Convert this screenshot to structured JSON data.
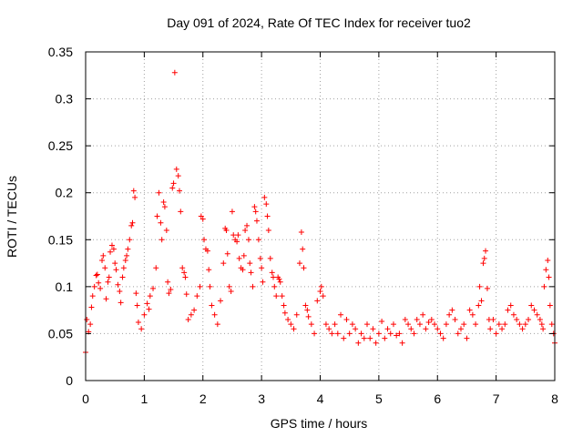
{
  "chart_data": {
    "type": "scatter",
    "title": "Day 091 of 2024, Rate Of TEC Index for receiver tuo2",
    "xlabel": "GPS time / hours",
    "ylabel": "ROTI / TECUs",
    "xlim": [
      0,
      8
    ],
    "ylim": [
      0,
      0.35
    ],
    "x_ticks": [
      "0",
      "1",
      "2",
      "3",
      "4",
      "5",
      "6",
      "7",
      "8"
    ],
    "y_ticks": [
      "0",
      "0.05",
      "0.1",
      "0.15",
      "0.2",
      "0.25",
      "0.3",
      "0.35"
    ],
    "grid": true,
    "marker": "+",
    "colors": {
      "points": "#ff0000",
      "axes": "#000000",
      "grid": "#a0a0a0"
    },
    "series": [
      {
        "name": "ROTI",
        "points": [
          [
            0.0,
            0.03
          ],
          [
            0.02,
            0.065
          ],
          [
            0.05,
            0.052
          ],
          [
            0.08,
            0.06
          ],
          [
            0.1,
            0.078
          ],
          [
            0.12,
            0.09
          ],
          [
            0.15,
            0.1
          ],
          [
            0.18,
            0.112
          ],
          [
            0.2,
            0.113
          ],
          [
            0.22,
            0.104
          ],
          [
            0.25,
            0.098
          ],
          [
            0.28,
            0.128
          ],
          [
            0.3,
            0.133
          ],
          [
            0.33,
            0.12
          ],
          [
            0.35,
            0.087
          ],
          [
            0.38,
            0.105
          ],
          [
            0.4,
            0.11
          ],
          [
            0.42,
            0.137
          ],
          [
            0.45,
            0.144
          ],
          [
            0.48,
            0.14
          ],
          [
            0.5,
            0.125
          ],
          [
            0.52,
            0.118
          ],
          [
            0.55,
            0.102
          ],
          [
            0.58,
            0.095
          ],
          [
            0.6,
            0.083
          ],
          [
            0.63,
            0.11
          ],
          [
            0.65,
            0.12
          ],
          [
            0.68,
            0.128
          ],
          [
            0.7,
            0.133
          ],
          [
            0.72,
            0.14
          ],
          [
            0.75,
            0.15
          ],
          [
            0.78,
            0.165
          ],
          [
            0.8,
            0.168
          ],
          [
            0.82,
            0.202
          ],
          [
            0.84,
            0.195
          ],
          [
            0.86,
            0.093
          ],
          [
            0.88,
            0.08
          ],
          [
            0.9,
            0.062
          ],
          [
            0.95,
            0.055
          ],
          [
            1.0,
            0.07
          ],
          [
            1.05,
            0.082
          ],
          [
            1.08,
            0.076
          ],
          [
            1.1,
            0.09
          ],
          [
            1.15,
            0.098
          ],
          [
            1.2,
            0.12
          ],
          [
            1.22,
            0.175
          ],
          [
            1.25,
            0.2
          ],
          [
            1.28,
            0.168
          ],
          [
            1.3,
            0.15
          ],
          [
            1.33,
            0.19
          ],
          [
            1.35,
            0.185
          ],
          [
            1.38,
            0.16
          ],
          [
            1.4,
            0.105
          ],
          [
            1.42,
            0.093
          ],
          [
            1.45,
            0.097
          ],
          [
            1.48,
            0.205
          ],
          [
            1.5,
            0.21
          ],
          [
            1.52,
            0.328
          ],
          [
            1.55,
            0.225
          ],
          [
            1.58,
            0.218
          ],
          [
            1.6,
            0.202
          ],
          [
            1.62,
            0.18
          ],
          [
            1.65,
            0.12
          ],
          [
            1.68,
            0.115
          ],
          [
            1.7,
            0.11
          ],
          [
            1.72,
            0.092
          ],
          [
            1.75,
            0.065
          ],
          [
            1.8,
            0.07
          ],
          [
            1.85,
            0.075
          ],
          [
            1.9,
            0.09
          ],
          [
            1.95,
            0.1
          ],
          [
            1.97,
            0.175
          ],
          [
            2.0,
            0.172
          ],
          [
            2.02,
            0.15
          ],
          [
            2.05,
            0.14
          ],
          [
            2.08,
            0.138
          ],
          [
            2.1,
            0.118
          ],
          [
            2.12,
            0.1
          ],
          [
            2.15,
            0.08
          ],
          [
            2.2,
            0.07
          ],
          [
            2.25,
            0.06
          ],
          [
            2.3,
            0.085
          ],
          [
            2.35,
            0.125
          ],
          [
            2.38,
            0.162
          ],
          [
            2.4,
            0.16
          ],
          [
            2.42,
            0.135
          ],
          [
            2.45,
            0.1
          ],
          [
            2.48,
            0.095
          ],
          [
            2.5,
            0.18
          ],
          [
            2.52,
            0.155
          ],
          [
            2.55,
            0.15
          ],
          [
            2.58,
            0.148
          ],
          [
            2.6,
            0.155
          ],
          [
            2.62,
            0.13
          ],
          [
            2.65,
            0.12
          ],
          [
            2.68,
            0.118
          ],
          [
            2.7,
            0.133
          ],
          [
            2.72,
            0.16
          ],
          [
            2.75,
            0.165
          ],
          [
            2.78,
            0.15
          ],
          [
            2.8,
            0.125
          ],
          [
            2.82,
            0.115
          ],
          [
            2.85,
            0.1
          ],
          [
            2.88,
            0.185
          ],
          [
            2.9,
            0.18
          ],
          [
            2.92,
            0.17
          ],
          [
            2.95,
            0.15
          ],
          [
            2.98,
            0.13
          ],
          [
            3.0,
            0.12
          ],
          [
            3.02,
            0.105
          ],
          [
            3.05,
            0.195
          ],
          [
            3.08,
            0.188
          ],
          [
            3.1,
            0.175
          ],
          [
            3.12,
            0.16
          ],
          [
            3.15,
            0.13
          ],
          [
            3.18,
            0.115
          ],
          [
            3.2,
            0.11
          ],
          [
            3.22,
            0.1
          ],
          [
            3.25,
            0.09
          ],
          [
            3.28,
            0.11
          ],
          [
            3.3,
            0.108
          ],
          [
            3.32,
            0.105
          ],
          [
            3.35,
            0.09
          ],
          [
            3.38,
            0.08
          ],
          [
            3.4,
            0.072
          ],
          [
            3.45,
            0.065
          ],
          [
            3.5,
            0.06
          ],
          [
            3.55,
            0.055
          ],
          [
            3.6,
            0.07
          ],
          [
            3.65,
            0.125
          ],
          [
            3.68,
            0.158
          ],
          [
            3.7,
            0.14
          ],
          [
            3.72,
            0.12
          ],
          [
            3.75,
            0.08
          ],
          [
            3.78,
            0.075
          ],
          [
            3.8,
            0.068
          ],
          [
            3.85,
            0.06
          ],
          [
            3.9,
            0.05
          ],
          [
            3.95,
            0.085
          ],
          [
            4.0,
            0.095
          ],
          [
            4.02,
            0.1
          ],
          [
            4.05,
            0.09
          ],
          [
            4.1,
            0.06
          ],
          [
            4.15,
            0.055
          ],
          [
            4.2,
            0.05
          ],
          [
            4.25,
            0.06
          ],
          [
            4.3,
            0.05
          ],
          [
            4.35,
            0.07
          ],
          [
            4.4,
            0.045
          ],
          [
            4.45,
            0.065
          ],
          [
            4.5,
            0.05
          ],
          [
            4.55,
            0.06
          ],
          [
            4.6,
            0.055
          ],
          [
            4.65,
            0.04
          ],
          [
            4.7,
            0.05
          ],
          [
            4.75,
            0.045
          ],
          [
            4.8,
            0.06
          ],
          [
            4.85,
            0.045
          ],
          [
            4.9,
            0.055
          ],
          [
            4.95,
            0.04
          ],
          [
            5.0,
            0.05
          ],
          [
            5.05,
            0.063
          ],
          [
            5.1,
            0.045
          ],
          [
            5.15,
            0.055
          ],
          [
            5.2,
            0.05
          ],
          [
            5.25,
            0.06
          ],
          [
            5.3,
            0.048
          ],
          [
            5.35,
            0.05
          ],
          [
            5.4,
            0.04
          ],
          [
            5.45,
            0.065
          ],
          [
            5.5,
            0.06
          ],
          [
            5.55,
            0.055
          ],
          [
            5.6,
            0.05
          ],
          [
            5.65,
            0.065
          ],
          [
            5.7,
            0.06
          ],
          [
            5.75,
            0.07
          ],
          [
            5.8,
            0.055
          ],
          [
            5.85,
            0.062
          ],
          [
            5.9,
            0.065
          ],
          [
            5.95,
            0.06
          ],
          [
            6.0,
            0.055
          ],
          [
            6.05,
            0.05
          ],
          [
            6.1,
            0.045
          ],
          [
            6.15,
            0.06
          ],
          [
            6.2,
            0.07
          ],
          [
            6.25,
            0.075
          ],
          [
            6.3,
            0.065
          ],
          [
            6.35,
            0.05
          ],
          [
            6.4,
            0.055
          ],
          [
            6.45,
            0.06
          ],
          [
            6.5,
            0.045
          ],
          [
            6.55,
            0.075
          ],
          [
            6.6,
            0.07
          ],
          [
            6.65,
            0.06
          ],
          [
            6.7,
            0.08
          ],
          [
            6.72,
            0.1
          ],
          [
            6.75,
            0.085
          ],
          [
            6.78,
            0.125
          ],
          [
            6.8,
            0.13
          ],
          [
            6.82,
            0.138
          ],
          [
            6.85,
            0.098
          ],
          [
            6.88,
            0.065
          ],
          [
            6.9,
            0.055
          ],
          [
            6.95,
            0.065
          ],
          [
            7.0,
            0.05
          ],
          [
            7.05,
            0.06
          ],
          [
            7.1,
            0.055
          ],
          [
            7.15,
            0.06
          ],
          [
            7.2,
            0.075
          ],
          [
            7.25,
            0.08
          ],
          [
            7.3,
            0.07
          ],
          [
            7.35,
            0.065
          ],
          [
            7.4,
            0.06
          ],
          [
            7.45,
            0.055
          ],
          [
            7.5,
            0.06
          ],
          [
            7.55,
            0.065
          ],
          [
            7.6,
            0.08
          ],
          [
            7.65,
            0.075
          ],
          [
            7.7,
            0.07
          ],
          [
            7.75,
            0.065
          ],
          [
            7.78,
            0.06
          ],
          [
            7.8,
            0.055
          ],
          [
            7.82,
            0.1
          ],
          [
            7.85,
            0.118
          ],
          [
            7.88,
            0.128
          ],
          [
            7.9,
            0.11
          ],
          [
            7.92,
            0.08
          ],
          [
            7.95,
            0.06
          ],
          [
            7.98,
            0.05
          ],
          [
            8.0,
            0.04
          ]
        ]
      }
    ]
  }
}
